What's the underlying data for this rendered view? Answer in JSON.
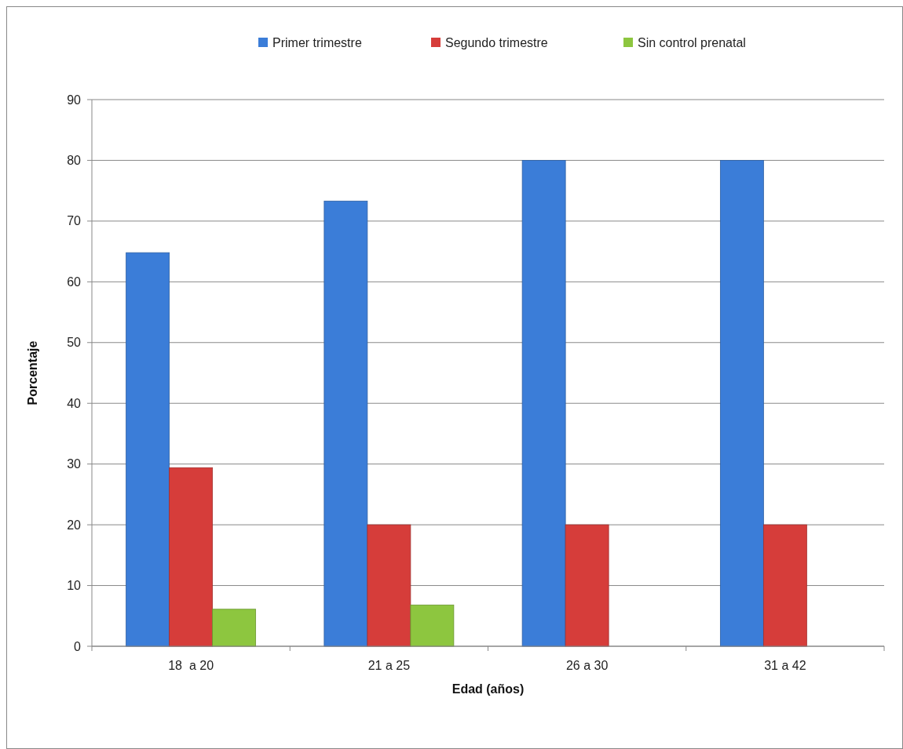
{
  "chart_data": {
    "type": "bar",
    "xlabel": "Edad (años)",
    "ylabel": "Porcentaje",
    "categories": [
      "18  a 20",
      "21 a 25",
      "26 a 30",
      "31 a 42"
    ],
    "series": [
      {
        "name": "Primer trimestre",
        "color": "#3b7dd8",
        "values": [
          64.8,
          73.3,
          80,
          80
        ]
      },
      {
        "name": "Segundo trimestre",
        "color": "#d63d3a",
        "values": [
          29.4,
          20,
          20,
          20
        ]
      },
      {
        "name": "Sin control prenatal",
        "color": "#8dc63f",
        "values": [
          6.1,
          6.8,
          null,
          null
        ]
      }
    ],
    "ylim": [
      0,
      90
    ],
    "yticks": [
      0,
      10,
      20,
      30,
      40,
      50,
      60,
      70,
      80,
      90
    ],
    "grid": "y",
    "legend": "top"
  }
}
